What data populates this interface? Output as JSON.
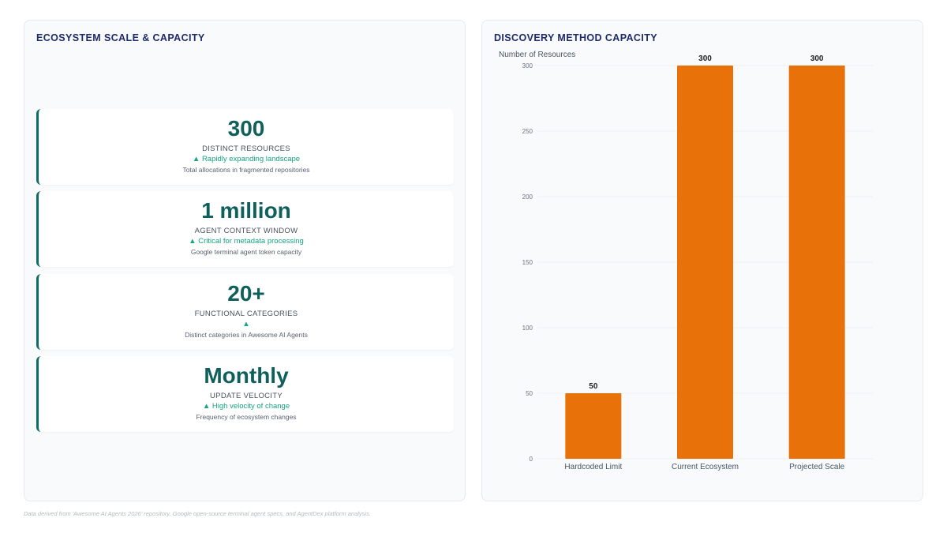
{
  "left_panel": {
    "title": "ECOSYSTEM SCALE & CAPACITY",
    "cards": [
      {
        "value": "300",
        "label": "DISTINCT RESOURCES",
        "trend": "▲ Rapidly expanding landscape",
        "desc": "Total allocations in fragmented repositories"
      },
      {
        "value": "1 million",
        "label": "AGENT CONTEXT WINDOW",
        "trend": "▲ Critical for metadata processing",
        "desc": "Google terminal agent token capacity"
      },
      {
        "value": "20+",
        "label": "FUNCTIONAL CATEGORIES",
        "trend": "▲",
        "desc": "Distinct categories in Awesome AI Agents"
      },
      {
        "value": "Monthly",
        "label": "UPDATE VELOCITY",
        "trend": "▲ High velocity of change",
        "desc": "Frequency of ecosystem changes"
      }
    ]
  },
  "right_panel": {
    "title": "DISCOVERY METHOD CAPACITY"
  },
  "chart_data": {
    "type": "bar",
    "title": "DISCOVERY METHOD CAPACITY",
    "categories": [
      "Hardcoded Limit",
      "Current Ecosystem",
      "Projected Scale"
    ],
    "values": [
      50,
      300,
      300
    ],
    "xlabel": "",
    "ylabel": "Number of Resources",
    "ylim": [
      0,
      300
    ],
    "yticks": [
      0,
      50,
      100,
      150,
      200,
      250,
      300
    ],
    "bar_color": "#e8710a",
    "grid": true,
    "legend": "none"
  },
  "footnote": "Data derived from 'Awesome AI Agents 2026' repository, Google open-source terminal agent specs, and AgentDex platform analysis.",
  "colors": {
    "accent": "#0f5f5c",
    "trend": "#16a37f",
    "title": "#1f2a6b"
  }
}
